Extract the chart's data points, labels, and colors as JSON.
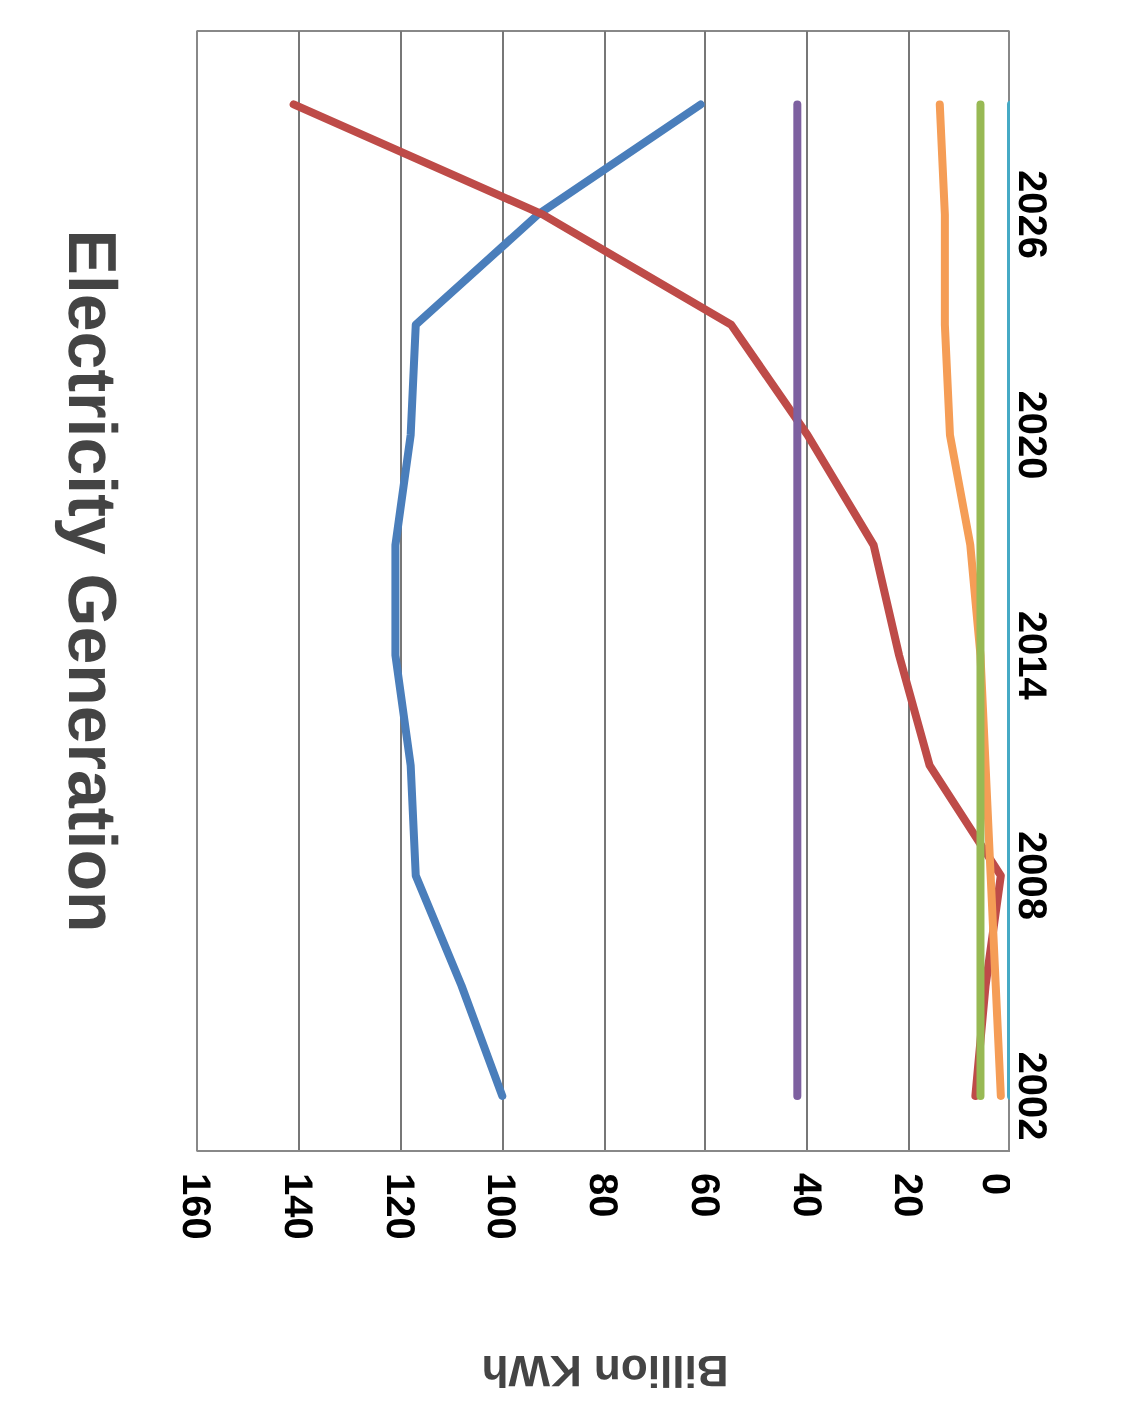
{
  "chart_data": {
    "type": "line",
    "orientation": "horizontal",
    "title": "Electricity Generation",
    "xlabel": "Billion KWh",
    "x": [
      2002,
      2005,
      2008,
      2011,
      2014,
      2017,
      2020,
      2023,
      2026,
      2029
    ],
    "series": [
      {
        "color": "#4a7ebb",
        "values": [
          100,
          108,
          117,
          118,
          121,
          121,
          118,
          117,
          93,
          61
        ]
      },
      {
        "color": "#be4b48",
        "values": [
          7,
          5,
          2,
          16,
          22,
          27,
          40,
          55,
          92,
          141
        ]
      },
      {
        "color": "#7d60a0",
        "values": [
          42,
          42,
          42,
          42,
          42,
          42,
          42,
          42,
          42,
          42
        ]
      },
      {
        "color": "#f59d56",
        "values": [
          2,
          3,
          4,
          5,
          6,
          8,
          12,
          13,
          13,
          14
        ]
      },
      {
        "color": "#98b954",
        "values": [
          6,
          6,
          6,
          6,
          6,
          6,
          6,
          6,
          6,
          6
        ]
      },
      {
        "color": "#46aac5",
        "values": [
          0,
          0,
          0,
          0,
          0,
          0,
          0,
          0,
          0,
          0
        ]
      }
    ],
    "xlim": [
      160,
      0
    ],
    "xticks": [
      0,
      20,
      40,
      60,
      80,
      100,
      120,
      140,
      160
    ],
    "ylim": [
      2000.5,
      2031
    ],
    "yticks": [
      2002,
      2008,
      2014,
      2020,
      2026
    ],
    "grid": "x",
    "line_style": "solid",
    "marker": "none"
  }
}
